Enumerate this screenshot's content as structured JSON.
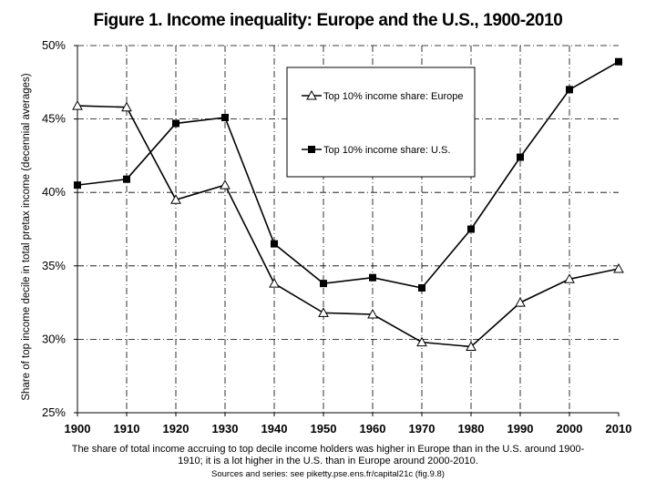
{
  "chart_data": {
    "type": "line",
    "title": "Figure 1. Income inequality: Europe and the U.S., 1900-2010",
    "xlabel": "",
    "ylabel": "Share of top income decile in total pretax income (decennial averages)",
    "x": [
      1900,
      1910,
      1920,
      1930,
      1940,
      1950,
      1960,
      1970,
      1980,
      1990,
      2000,
      2010
    ],
    "x_tick_labels": [
      "1900",
      "1910",
      "1920",
      "1930",
      "1940",
      "1950",
      "1960",
      "1970",
      "1980",
      "1990",
      "2000",
      "2010"
    ],
    "y_ticks": [
      25,
      30,
      35,
      40,
      45,
      50
    ],
    "y_tick_labels": [
      "25%",
      "30%",
      "35%",
      "40%",
      "45%",
      "50%"
    ],
    "ylim": [
      25,
      50
    ],
    "grid": true,
    "legend_position": "top-center",
    "series": [
      {
        "name": "Top 10% income share: Europe",
        "marker": "triangle-open",
        "values": [
          45.9,
          45.8,
          39.5,
          40.5,
          33.8,
          31.8,
          31.7,
          29.8,
          29.5,
          32.5,
          34.1,
          34.8
        ]
      },
      {
        "name": "Top 10% income share: U.S.",
        "marker": "square-filled",
        "values": [
          40.5,
          40.9,
          44.7,
          45.1,
          36.5,
          33.8,
          34.2,
          33.5,
          37.5,
          42.4,
          47.0,
          48.9
        ]
      }
    ],
    "captions": [
      "The share of total income accruing to top decile income holders was higher in Europe than in the U.S. around 1900-",
      "1910; it is a lot higher in the U.S. than in Europe around 2000-2010.",
      "Sources and series: see piketty.pse.ens.fr/capital21c (fig.9.8)"
    ]
  }
}
